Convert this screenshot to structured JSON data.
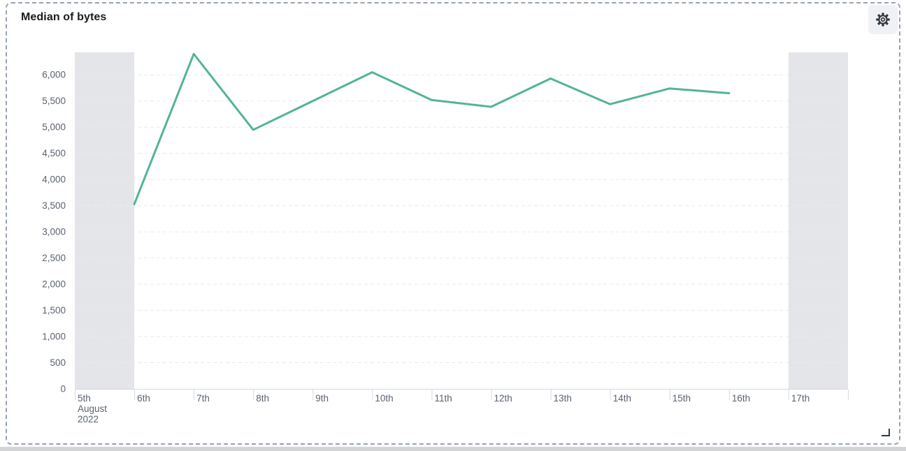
{
  "panel": {
    "title": "Median of bytes"
  },
  "chart_data": {
    "type": "line",
    "title": "Median of bytes",
    "xlabel": "",
    "ylabel": "",
    "legend": "none",
    "grid": "horizontal-dashed",
    "ylim": [
      0,
      6430
    ],
    "y_tick_values": [
      0,
      500,
      1000,
      1500,
      2000,
      2500,
      3000,
      3500,
      4000,
      4500,
      5000,
      5500,
      6000
    ],
    "y_ticks": [
      "0",
      "500",
      "1,000",
      "1,500",
      "2,000",
      "2,500",
      "3,000",
      "3,500",
      "4,000",
      "4,500",
      "5,000",
      "5,500",
      "6,000"
    ],
    "x_ticks": [
      {
        "label": "5th",
        "sublabels": [
          "August",
          "2022"
        ]
      },
      {
        "label": "6th"
      },
      {
        "label": "7th"
      },
      {
        "label": "8th"
      },
      {
        "label": "9th"
      },
      {
        "label": "10th"
      },
      {
        "label": "11th"
      },
      {
        "label": "12th"
      },
      {
        "label": "13th"
      },
      {
        "label": "14th"
      },
      {
        "label": "15th"
      },
      {
        "label": "16th"
      },
      {
        "label": "17th"
      }
    ],
    "partial_bucket_categories": [
      "5th",
      "17th"
    ],
    "series": [
      {
        "name": "Median of bytes",
        "color": "#54b399",
        "points": [
          {
            "x": "6th",
            "y": 3530
          },
          {
            "x": "7th",
            "y": 6400
          },
          {
            "x": "8th",
            "y": 4950
          },
          {
            "x": "9th",
            "y": 5500
          },
          {
            "x": "10th",
            "y": 6050
          },
          {
            "x": "11th",
            "y": 5520
          },
          {
            "x": "12th",
            "y": 5390
          },
          {
            "x": "13th",
            "y": 5930
          },
          {
            "x": "14th",
            "y": 5440
          },
          {
            "x": "15th",
            "y": 5740
          },
          {
            "x": "16th",
            "y": 5650
          }
        ]
      }
    ]
  },
  "colors": {
    "line": "#54b399",
    "partial_band": "#e4e5e9",
    "gridline": "#e8eaee",
    "axis_line": "#d6d9e0",
    "tick_label": "#5b6271",
    "title_text": "#1a1c21",
    "panel_border": "#98a2b3",
    "gear_button_bg": "#f0f1f5",
    "icon": "#343741",
    "bottom_strip": "#d3d4d6"
  }
}
